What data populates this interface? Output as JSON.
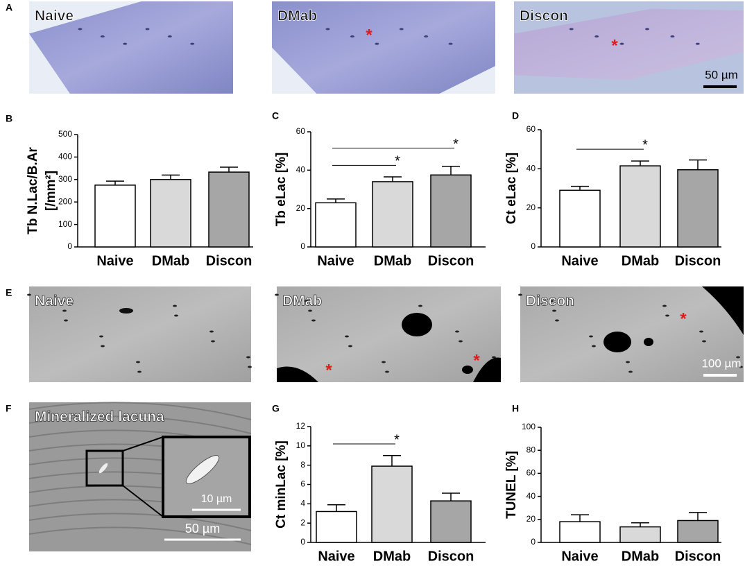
{
  "images": [
    {
      "label": "A",
      "panels": [
        {
          "title": "Naive"
        },
        {
          "title": "DMab",
          "markers": [
            "*"
          ]
        },
        {
          "title": "Discon",
          "markers": [
            "*"
          ],
          "scale_bar": "50 µm"
        }
      ]
    },
    {
      "label": "E",
      "panels": [
        {
          "title": "Naive"
        },
        {
          "title": "DMab",
          "markers": [
            "*",
            "*"
          ]
        },
        {
          "title": "Discon",
          "markers": [
            "*"
          ],
          "scale_bar": "100 µm"
        }
      ]
    },
    {
      "label": "F",
      "panels": [
        {
          "title": "Mineralized lacuna",
          "scale_bar": "50 µm",
          "inset_scale_bar": "10 µm"
        }
      ]
    }
  ],
  "chart_data": [
    {
      "type": "bar",
      "label": "B",
      "ylabel": [
        "Tb N.Lac/B.Ar",
        "[/mm²]"
      ],
      "categories": [
        "Naive",
        "DMab",
        "Discon"
      ],
      "values": [
        275,
        300,
        333
      ],
      "errors": [
        18,
        20,
        22
      ],
      "colors": [
        "#ffffff",
        "#d9d9d9",
        "#a6a6a6"
      ],
      "ylim": [
        0,
        500
      ],
      "yticks": [
        0,
        100,
        200,
        300,
        400,
        500
      ],
      "annotations": []
    },
    {
      "type": "bar",
      "label": "C",
      "ylabel": [
        "Tb eLac [%]"
      ],
      "categories": [
        "Naive",
        "DMab",
        "Discon"
      ],
      "values": [
        23,
        34,
        37.5
      ],
      "errors": [
        2,
        2.5,
        4.5
      ],
      "colors": [
        "#ffffff",
        "#d9d9d9",
        "#a6a6a6"
      ],
      "ylim": [
        0,
        60
      ],
      "yticks": [
        0,
        20,
        40,
        60
      ],
      "annotations": [
        {
          "text": "*",
          "between": [
            "Naive",
            "DMab"
          ]
        },
        {
          "text": "*",
          "between": [
            "Naive",
            "Discon"
          ]
        }
      ]
    },
    {
      "type": "bar",
      "label": "D",
      "ylabel": [
        "Ct eLac [%]"
      ],
      "categories": [
        "Naive",
        "DMab",
        "Discon"
      ],
      "values": [
        29,
        41.5,
        39.5
      ],
      "errors": [
        2,
        2.5,
        5
      ],
      "colors": [
        "#ffffff",
        "#d9d9d9",
        "#a6a6a6"
      ],
      "ylim": [
        0,
        60
      ],
      "yticks": [
        0,
        20,
        40,
        60
      ],
      "annotations": [
        {
          "text": "*",
          "between": [
            "Naive",
            "DMab"
          ]
        }
      ]
    },
    {
      "type": "bar",
      "label": "G",
      "ylabel": [
        "Ct minLac [%]"
      ],
      "categories": [
        "Naive",
        "DMab",
        "Discon"
      ],
      "values": [
        3.2,
        7.9,
        4.3
      ],
      "errors": [
        0.7,
        1.1,
        0.8
      ],
      "colors": [
        "#ffffff",
        "#d9d9d9",
        "#a6a6a6"
      ],
      "ylim": [
        0,
        12
      ],
      "yticks": [
        0,
        2,
        4,
        6,
        8,
        10,
        12
      ],
      "annotations": [
        {
          "text": "*",
          "between": [
            "Naive",
            "DMab"
          ]
        }
      ]
    },
    {
      "type": "bar",
      "label": "H",
      "ylabel": [
        "TUNEL [%]"
      ],
      "categories": [
        "Naive",
        "DMab",
        "Discon"
      ],
      "values": [
        18,
        13.5,
        19
      ],
      "errors": [
        6,
        3.5,
        7
      ],
      "colors": [
        "#ffffff",
        "#d9d9d9",
        "#a6a6a6"
      ],
      "ylim": [
        0,
        100
      ],
      "yticks": [
        0,
        20,
        40,
        60,
        80,
        100
      ],
      "annotations": []
    }
  ]
}
